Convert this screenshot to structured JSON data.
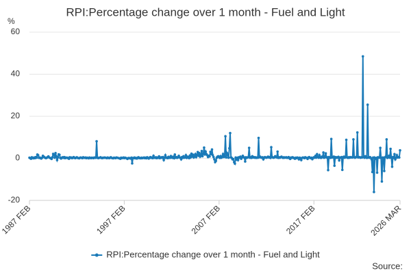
{
  "chart_data": {
    "type": "line",
    "title": "RPI:Percentage change over 1 month - Fuel and Light",
    "y_label": "%",
    "source": "Source:",
    "ylim": [
      -20,
      60
    ],
    "yticks": [
      -20,
      0,
      20,
      40,
      60
    ],
    "grid": true,
    "categories": [
      "1987 FEB",
      null,
      null,
      null,
      null,
      null,
      null,
      null,
      null,
      null,
      null,
      null,
      null,
      null,
      null,
      null,
      null,
      null,
      null,
      null,
      null,
      null,
      null,
      null,
      null,
      null,
      null,
      null,
      null,
      null,
      null,
      null,
      null,
      null,
      null,
      null,
      null,
      null,
      null,
      null,
      null,
      null,
      null,
      null,
      null,
      null,
      null,
      null,
      null,
      null,
      null,
      null,
      null,
      null,
      null,
      null,
      null,
      null,
      null,
      null,
      null,
      null,
      null,
      null,
      null,
      null,
      null,
      null,
      null,
      null,
      null,
      null,
      null,
      null,
      null,
      null,
      null,
      null,
      null,
      null,
      null,
      null,
      null,
      null,
      null,
      null,
      null,
      null,
      null,
      null,
      null,
      null,
      null,
      null,
      null,
      null,
      null,
      null,
      null,
      null,
      null,
      null,
      null,
      null,
      null,
      null,
      null,
      null,
      null,
      null,
      null,
      null,
      null,
      null,
      null,
      null,
      null,
      null,
      null,
      null,
      "1997 FEB",
      null,
      null,
      null,
      null,
      null,
      null,
      null,
      null,
      null,
      null,
      null,
      null,
      null,
      null,
      null,
      null,
      null,
      null,
      null,
      null,
      null,
      null,
      null,
      null,
      null,
      null,
      null,
      null,
      null,
      null,
      null,
      null,
      null,
      null,
      null,
      null,
      null,
      null,
      null,
      null,
      null,
      null,
      null,
      null,
      null,
      null,
      null,
      null,
      null,
      null,
      null,
      null,
      null,
      null,
      null,
      null,
      null,
      null,
      null,
      null,
      null,
      null,
      null,
      null,
      null,
      null,
      null,
      null,
      null,
      null,
      null,
      null,
      null,
      null,
      null,
      null,
      null,
      null,
      null,
      null,
      null,
      null,
      null,
      null,
      null,
      null,
      null,
      null,
      null,
      null,
      null,
      null,
      null,
      null,
      null,
      null,
      null,
      null,
      null,
      null,
      null,
      null,
      null,
      null,
      null,
      null,
      null,
      null,
      null,
      null,
      null,
      null,
      null,
      null,
      null,
      null,
      null,
      null,
      null,
      "2007 FEB",
      null,
      null,
      null,
      null,
      null,
      null,
      null,
      null,
      null,
      null,
      null,
      null,
      null,
      null,
      null,
      null,
      null,
      null,
      null,
      null,
      null,
      null,
      null,
      null,
      null,
      null,
      null,
      null,
      null,
      null,
      null,
      null,
      null,
      null,
      null,
      null,
      null,
      null,
      null,
      null,
      null,
      null,
      null,
      null,
      null,
      null,
      null,
      null,
      null,
      null,
      null,
      null,
      null,
      null,
      null,
      null,
      null,
      null,
      null,
      null,
      null,
      null,
      null,
      null,
      null,
      null,
      null,
      null,
      null,
      null,
      null,
      null,
      null,
      null,
      null,
      null,
      null,
      null,
      null,
      null,
      null,
      null,
      null,
      null,
      null,
      null,
      null,
      null,
      null,
      null,
      null,
      null,
      null,
      null,
      null,
      null,
      null,
      null,
      null,
      null,
      null,
      null,
      null,
      null,
      null,
      null,
      null,
      null,
      null,
      null,
      null,
      null,
      null,
      null,
      null,
      null,
      null,
      null,
      null,
      "2017 FEB",
      null,
      null,
      null,
      null,
      null,
      null,
      null,
      null,
      null,
      null,
      null,
      null,
      null,
      null,
      null,
      null,
      null,
      null,
      null,
      null,
      null,
      null,
      null,
      null,
      null,
      null,
      null,
      null,
      null,
      null,
      null,
      null,
      null,
      null,
      null,
      null,
      null,
      null,
      null,
      null,
      null,
      null,
      null,
      null,
      null,
      null,
      null,
      null,
      null,
      null,
      null,
      null,
      null,
      null,
      null,
      null,
      null,
      null,
      null,
      null,
      null,
      null,
      null,
      null,
      null,
      null,
      null,
      null,
      null,
      null,
      null,
      null,
      null,
      null,
      null,
      null,
      null,
      null,
      null,
      null,
      null,
      null,
      null,
      null,
      null,
      null,
      null,
      null,
      null,
      null,
      null,
      null,
      null,
      null,
      null,
      null,
      null,
      null,
      null,
      null,
      null,
      null,
      null,
      null,
      null,
      null,
      null,
      null,
      "2026 MAR"
    ],
    "series": [
      {
        "name": "RPI:Percentage change over 1 month - Fuel and Light",
        "color": "#1a7ab8",
        "values": [
          0.3,
          0.1,
          -0.2,
          0.5,
          0.2,
          0.0,
          0.4,
          0.1,
          0.6,
          0.3,
          1.8,
          1.5,
          0.2,
          0.4,
          0.1,
          -0.1,
          0.3,
          1.2,
          0.8,
          0.5,
          0.2,
          0.1,
          0.3,
          0.6,
          0.9,
          0.4,
          0.2,
          0.0,
          -0.3,
          0.5,
          2.1,
          1.6,
          0.3,
          2.5,
          1.0,
          -0.8,
          0.4,
          1.9,
          1.7,
          0.2,
          -0.1,
          0.3,
          0.5,
          0.2,
          0.6,
          0.1,
          0.4,
          0.2,
          0.3,
          0.1,
          -0.2,
          0.5,
          0.2,
          0.4,
          0.1,
          0.3,
          0.6,
          0.2,
          0.1,
          0.3,
          0.5,
          0.2,
          0.1,
          0.0,
          0.3,
          0.4,
          0.2,
          0.1,
          0.5,
          0.3,
          0.2,
          0.4,
          0.1,
          0.3,
          0.2,
          0.0,
          0.4,
          0.2,
          0.1,
          0.3,
          0.2,
          0.1,
          0.4,
          0.3,
          0.2,
          8.1,
          0.4,
          0.1,
          0.2,
          0.3,
          0.5,
          0.2,
          0.1,
          0.3,
          0.2,
          0.4,
          0.3,
          0.2,
          0.1,
          0.4,
          0.2,
          0.1,
          0.3,
          0.5,
          0.2,
          0.1,
          0.0,
          0.3,
          0.2,
          0.1,
          0.4,
          0.3,
          0.2,
          0.1,
          0.0,
          -0.2,
          0.3,
          0.1,
          0.2,
          0.4,
          0.1,
          0.3,
          0.2,
          0.0,
          -0.3,
          0.1,
          0.2,
          0.0,
          -0.1,
          0.3,
          -2.4,
          0.2,
          0.1,
          0.4,
          0.0,
          0.2,
          -0.1,
          0.3,
          0.5,
          0.1,
          0.2,
          0.0,
          0.3,
          0.1,
          0.2,
          0.4,
          0.1,
          0.3,
          0.0,
          0.5,
          0.2,
          -0.1,
          0.3,
          0.6,
          0.2,
          0.4,
          0.1,
          1.2,
          0.3,
          0.2,
          0.5,
          0.1,
          0.4,
          0.2,
          0.9,
          0.1,
          0.3,
          0.5,
          0.2,
          0.6,
          -0.8,
          0.3,
          1.5,
          0.2,
          0.4,
          0.1,
          0.7,
          0.3,
          0.2,
          1.1,
          0.4,
          0.2,
          0.8,
          0.1,
          1.8,
          0.3,
          0.6,
          0.2,
          0.5,
          1.2,
          0.4,
          0.3,
          -0.5,
          0.6,
          0.2,
          1.0,
          0.3,
          0.4,
          1.5,
          0.2,
          0.8,
          0.6,
          0.1,
          1.3,
          0.5,
          2.2,
          0.9,
          1.7,
          0.4,
          1.0,
          2.0,
          0.6,
          1.5,
          3.0,
          1.2,
          2.5,
          0.8,
          1.6,
          3.5,
          1.0,
          2.2,
          5.1,
          1.8,
          3.2,
          2.0,
          1.5,
          0.6,
          1.2,
          0.9,
          3.1,
          2.0,
          4.2,
          1.5,
          0.6,
          -0.5,
          -1.8,
          -1.2,
          0.3,
          0.8,
          1.0,
          0.5,
          0.2,
          1.1,
          0.3,
          0.8,
          2.0,
          0.6,
          1.0,
          10.5,
          0.4,
          2.5,
          1.5,
          0.3,
          4.8,
          12.0,
          0.5,
          0.2,
          -0.5,
          -0.3,
          -1.8,
          -2.5,
          0.4,
          -0.6,
          0.2,
          -0.8,
          0.5,
          0.3,
          0.8,
          -0.2,
          0.4,
          1.2,
          0.6,
          0.3,
          -1.5,
          0.5,
          0.2,
          0.4,
          0.6,
          5.0,
          0.3,
          0.5,
          0.2,
          1.0,
          0.4,
          0.6,
          0.3,
          0.5,
          0.2,
          0.4,
          0.3,
          9.7,
          0.5,
          0.8,
          0.4,
          0.3,
          0.5,
          -0.5,
          0.2,
          0.6,
          0.4,
          0.3,
          0.5,
          0.8,
          0.4,
          0.6,
          0.2,
          5.3,
          0.7,
          0.4,
          0.3,
          0.5,
          1.0,
          0.6,
          0.4,
          3.2,
          0.2,
          0.5,
          0.3,
          0.6,
          0.8,
          0.4,
          0.2,
          0.5,
          0.3,
          0.4,
          0.5,
          0.2,
          0.3,
          0.6,
          0.1,
          -0.3,
          0.4,
          0.2,
          0.5,
          0.3,
          0.1,
          -0.2,
          0.3,
          0.1,
          0.4,
          0.2,
          -0.5,
          0.3,
          0.1,
          -0.8,
          0.2,
          0.4,
          0.3,
          0.1,
          0.5,
          0.3,
          0.2,
          -0.3,
          0.4,
          0.6,
          0.2,
          0.1,
          0.3,
          -0.4,
          0.2,
          0.5,
          0.3,
          1.2,
          0.4,
          2.0,
          0.6,
          0.3,
          1.5,
          0.4,
          0.2,
          0.8,
          0.5,
          2.8,
          0.3,
          0.6,
          2.4,
          0.4,
          0.5,
          -5.6,
          0.6,
          0.3,
          0.2,
          9.2,
          0.4,
          0.5,
          0.8,
          -3.5,
          0.6,
          0.2,
          0.5,
          0.3,
          0.7,
          -1.0,
          0.4,
          0.3,
          0.6,
          -5.5,
          0.5,
          0.8,
          0.3,
          0.6,
          8.8,
          0.4,
          0.2,
          0.5,
          0.3,
          0.6,
          0.4,
          0.5,
          0.4,
          9.0,
          0.6,
          0.3,
          0.5,
          0.8,
          12.3,
          0.4,
          0.6,
          0.5,
          0.3,
          0.5,
          0.4,
          48.5,
          0.6,
          0.3,
          1.0,
          0.5,
          0.2,
          25.5,
          0.4,
          0.3,
          0.6,
          0.2,
          -0.5,
          -6.5,
          0.4,
          -16.0,
          0.3,
          -0.2,
          0.2,
          -6.8,
          0.5,
          0.4,
          0.3,
          5.0,
          0.2,
          -11.0,
          0.4,
          0.3,
          -6.0,
          0.5,
          0.8,
          9.0,
          0.2,
          0.6,
          1.2,
          0.3,
          4.5,
          0.4,
          -4.0,
          0.6,
          0.2,
          2.0,
          -0.5,
          0.3,
          1.5,
          0.4,
          0.6,
          0.4,
          3.8
        ]
      }
    ]
  }
}
